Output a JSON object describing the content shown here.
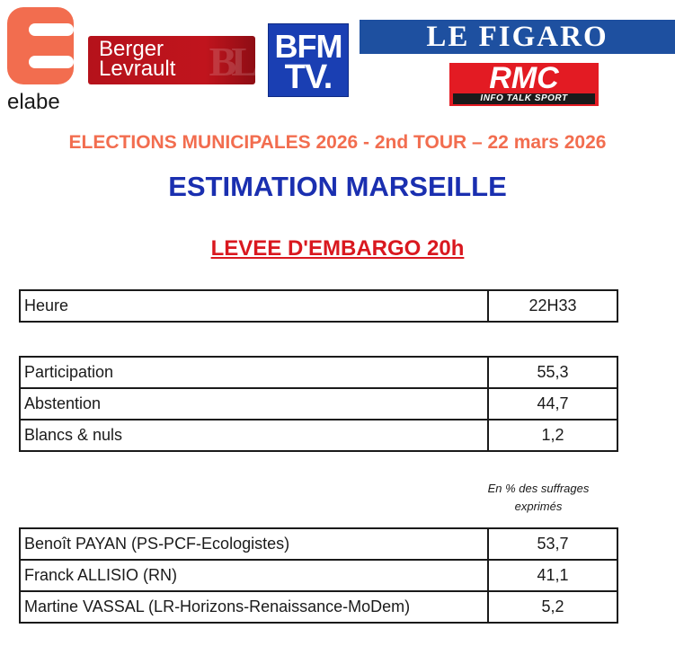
{
  "logos": {
    "elabe": {
      "text": "elabe",
      "color": "#f26d4f"
    },
    "berger_levrault": {
      "line1": "Berger",
      "line2": "Levrault",
      "mark": "BL",
      "color": "#b5121b"
    },
    "bfmtv": {
      "line1": "BFM",
      "line2": "TV.",
      "color": "#1a3fb3"
    },
    "figaro": {
      "text": "LE FIGARO",
      "color": "#1e50a0"
    },
    "rmc": {
      "text": "RMC",
      "tagline": "INFO TALK SPORT",
      "color": "#e31b23"
    }
  },
  "headings": {
    "election": "ELECTIONS MUNICIPALES 2026 - 2nd TOUR – 22 mars 2026",
    "estimation": "ESTIMATION MARSEILLE",
    "embargo": "LEVEE D'EMBARGO 20h"
  },
  "time_table": {
    "rows": [
      {
        "label": "Heure",
        "value": "22H33"
      }
    ]
  },
  "turnout_table": {
    "rows": [
      {
        "label": "Participation",
        "value": "55,3"
      },
      {
        "label": "Abstention",
        "value": "44,7"
      },
      {
        "label": "Blancs & nuls",
        "value": "1,2"
      }
    ]
  },
  "note": {
    "line1": "En % des suffrages",
    "line2": "exprimés"
  },
  "results_table": {
    "rows": [
      {
        "label": "Benoît PAYAN (PS-PCF-Ecologistes)",
        "value": "53,7"
      },
      {
        "label": "Franck ALLISIO (RN)",
        "value": "41,1"
      },
      {
        "label": "Martine VASSAL (LR-Horizons-Renaissance-MoDem)",
        "value": "5,2"
      }
    ]
  }
}
